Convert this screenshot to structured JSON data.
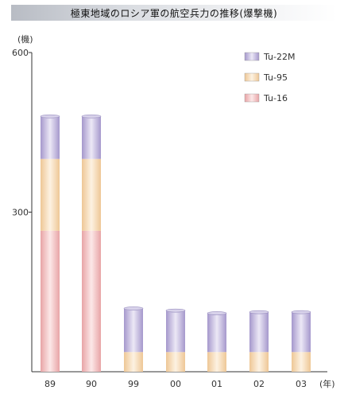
{
  "chart_data": {
    "type": "bar",
    "stacked": true,
    "title": "極東地域のロシア軍の航空兵力の推移(爆撃機)",
    "ylabel": "(機)",
    "xlabel": "(年)",
    "categories": [
      "89",
      "90",
      "99",
      "00",
      "01",
      "02",
      "03"
    ],
    "series": [
      {
        "name": "Tu-16",
        "values": [
          265,
          265,
          0,
          0,
          0,
          0,
          0
        ]
      },
      {
        "name": "Tu-95",
        "values": [
          135,
          135,
          37,
          37,
          37,
          37,
          37
        ]
      },
      {
        "name": "Tu-22M",
        "values": [
          80,
          80,
          82,
          78,
          73,
          75,
          75
        ]
      }
    ],
    "ylim": [
      0,
      600
    ],
    "yticks": [
      300,
      600
    ],
    "grid": false,
    "legend_position": "top-right",
    "colors": {
      "Tu-16": "#f0b8b8",
      "Tu-95": "#f6d9b4",
      "Tu-22M": "#bfb2dc"
    }
  }
}
